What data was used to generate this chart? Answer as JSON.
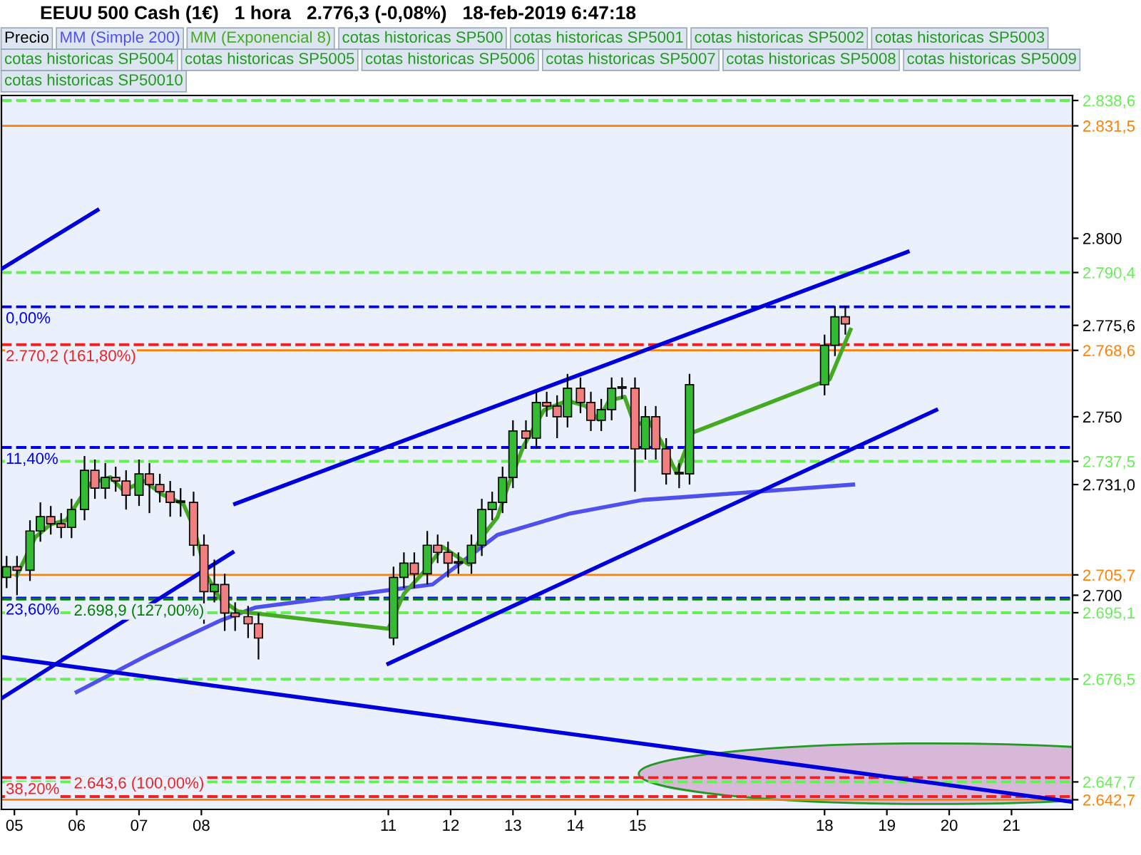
{
  "chart_data": {
    "type": "candlestick",
    "title": "EEUU 500 Cash (1€)   1 hora   2.776,3 (-0,08%)   18-feb-2019 6:47:18",
    "xlim": [
      "2019-02-04T19:00",
      "2019-02-21T23:30"
    ],
    "ylim": [
      2640,
      2840
    ],
    "xticks": [
      {
        "value": "2019-02-05",
        "label": "05"
      },
      {
        "value": "2019-02-06",
        "label": "06"
      },
      {
        "value": "2019-02-07",
        "label": "07"
      },
      {
        "value": "2019-02-08",
        "label": "08"
      },
      {
        "value": "2019-02-11",
        "label": "11"
      },
      {
        "value": "2019-02-12",
        "label": "12"
      },
      {
        "value": "2019-02-13",
        "label": "13"
      },
      {
        "value": "2019-02-14",
        "label": "14"
      },
      {
        "value": "2019-02-15",
        "label": "15"
      },
      {
        "value": "2019-02-18",
        "label": "18"
      },
      {
        "value": "2019-02-19",
        "label": "19"
      },
      {
        "value": "2019-02-20",
        "label": "20"
      },
      {
        "value": "2019-02-21",
        "label": "21"
      }
    ],
    "yticks": [
      {
        "value": 2838.6,
        "label": "2.838,6"
      },
      {
        "value": 2831.5,
        "label": "2.831,5"
      },
      {
        "value": 2800,
        "label": "2.800"
      },
      {
        "value": 2790.4,
        "label": "2.790,4"
      },
      {
        "value": 2775.6,
        "label": "2.775,6"
      },
      {
        "value": 2768.6,
        "label": "2.768,6"
      },
      {
        "value": 2750,
        "label": "2.750"
      },
      {
        "value": 2737.5,
        "label": "2.737,5"
      },
      {
        "value": 2731.0,
        "label": "2.731,0"
      },
      {
        "value": 2705.7,
        "label": "2.705,7"
      },
      {
        "value": 2700,
        "label": "2.700"
      },
      {
        "value": 2695.1,
        "label": "2.695,1"
      },
      {
        "value": 2676.5,
        "label": "2.676,5"
      },
      {
        "value": 2647.7,
        "label": "2.647,7"
      },
      {
        "value": 2642.7,
        "label": "2.642,7"
      }
    ],
    "grid": false,
    "legend": "top",
    "series": [
      {
        "name": "Precio",
        "color": "#000000",
        "x": [
          "2019-02-04T21:00",
          "2019-02-05T01:00",
          "2019-02-05T06:00",
          "2019-02-05T10:00",
          "2019-02-05T14:00",
          "2019-02-05T18:00",
          "2019-02-05T22:00",
          "2019-02-06T03:00",
          "2019-02-06T07:00",
          "2019-02-06T11:00",
          "2019-02-06T15:00",
          "2019-02-06T19:00",
          "2019-02-07T00:00",
          "2019-02-07T04:00",
          "2019-02-07T08:00",
          "2019-02-07T12:00",
          "2019-02-07T16:00",
          "2019-02-07T21:00",
          "2019-02-08T01:00",
          "2019-02-08T05:00",
          "2019-02-08T09:00",
          "2019-02-08T13:00",
          "2019-02-08T18:00",
          "2019-02-08T22:00",
          "2019-02-11T02:00",
          "2019-02-11T06:00",
          "2019-02-11T10:00",
          "2019-02-11T15:00",
          "2019-02-11T19:00",
          "2019-02-11T23:00",
          "2019-02-12T03:00",
          "2019-02-12T08:00",
          "2019-02-12T12:00",
          "2019-02-12T16:00",
          "2019-02-12T20:00",
          "2019-02-13T00:00",
          "2019-02-13T05:00",
          "2019-02-13T09:00",
          "2019-02-13T13:00",
          "2019-02-13T17:00",
          "2019-02-13T21:00",
          "2019-02-14T02:00",
          "2019-02-14T06:00",
          "2019-02-14T10:00",
          "2019-02-14T14:00",
          "2019-02-14T18:00",
          "2019-02-14T23:00",
          "2019-02-15T03:00",
          "2019-02-15T07:00",
          "2019-02-15T11:00",
          "2019-02-15T16:00",
          "2019-02-15T20:00",
          "2019-02-18T00:00",
          "2019-02-18T04:00",
          "2019-02-18T08:00"
        ],
        "ohlc": [
          [
            2705,
            2711,
            2702,
            2708
          ],
          [
            2708,
            2711,
            2700,
            2707
          ],
          [
            2707,
            2721,
            2704,
            2718
          ],
          [
            2718,
            2726,
            2715,
            2722
          ],
          [
            2722,
            2725,
            2717,
            2720
          ],
          [
            2720,
            2723,
            2716,
            2719
          ],
          [
            2719,
            2727,
            2716,
            2724
          ],
          [
            2724,
            2739,
            2721,
            2735
          ],
          [
            2735,
            2738,
            2727,
            2730
          ],
          [
            2730,
            2737,
            2727,
            2733
          ],
          [
            2733,
            2736,
            2729,
            2732
          ],
          [
            2732,
            2735,
            2724,
            2728
          ],
          [
            2728,
            2738,
            2725,
            2734
          ],
          [
            2734,
            2737,
            2723,
            2731
          ],
          [
            2731,
            2734,
            2726,
            2729
          ],
          [
            2729,
            2732,
            2722,
            2726
          ],
          [
            2726,
            2730,
            2722,
            2726
          ],
          [
            2726,
            2729,
            2711,
            2714
          ],
          [
            2714,
            2717,
            2692,
            2701
          ],
          [
            2701,
            2710,
            2698,
            2703
          ],
          [
            2703,
            2706,
            2690,
            2695
          ],
          [
            2695,
            2698,
            2690,
            2694
          ],
          [
            2694,
            2697,
            2688,
            2692
          ],
          [
            2692,
            2695,
            2682,
            2688
          ],
          [
            2688,
            2708,
            2686,
            2705
          ],
          [
            2705,
            2712,
            2702,
            2709
          ],
          [
            2709,
            2712,
            2702,
            2706
          ],
          [
            2706,
            2718,
            2703,
            2714
          ],
          [
            2714,
            2717,
            2709,
            2712
          ],
          [
            2712,
            2715,
            2705,
            2709
          ],
          [
            2709,
            2712,
            2706,
            2709
          ],
          [
            2709,
            2717,
            2706,
            2714
          ],
          [
            2714,
            2727,
            2711,
            2724
          ],
          [
            2724,
            2729,
            2721,
            2726
          ],
          [
            2726,
            2736,
            2723,
            2733
          ],
          [
            2733,
            2749,
            2730,
            2746
          ],
          [
            2746,
            2749,
            2741,
            2744
          ],
          [
            2744,
            2757,
            2741,
            2754
          ],
          [
            2754,
            2757,
            2750,
            2753
          ],
          [
            2753,
            2756,
            2744,
            2750
          ],
          [
            2750,
            2762,
            2747,
            2758
          ],
          [
            2758,
            2761,
            2751,
            2754
          ],
          [
            2754,
            2757,
            2746,
            2749
          ],
          [
            2749,
            2755,
            2746,
            2752
          ],
          [
            2752,
            2761,
            2749,
            2758
          ],
          [
            2758,
            2761,
            2755,
            2758
          ],
          [
            2758,
            2761,
            2729,
            2741
          ],
          [
            2741,
            2753,
            2738,
            2750
          ],
          [
            2750,
            2753,
            2738,
            2741
          ],
          [
            2741,
            2744,
            2731,
            2734
          ],
          [
            2734,
            2737,
            2730,
            2734
          ],
          [
            2734,
            2762,
            2731,
            2759
          ],
          [
            2759,
            2773,
            2756,
            2770
          ],
          [
            2770,
            2781,
            2767,
            2778
          ],
          [
            2778,
            2781,
            2773,
            2776
          ]
        ],
        "colors": [
          "#33bb33",
          "#f08080",
          "#33bb33",
          "#33bb33",
          "#f08080",
          "#f08080",
          "#33bb33",
          "#33bb33",
          "#f08080",
          "#33bb33",
          "#f08080",
          "#f08080",
          "#33bb33",
          "#f08080",
          "#f08080",
          "#f08080",
          "#33bb33",
          "#f08080",
          "#f08080",
          "#33bb33",
          "#f08080",
          "#f08080",
          "#f08080",
          "#f08080",
          "#33bb33",
          "#33bb33",
          "#f08080",
          "#33bb33",
          "#f08080",
          "#f08080",
          "#33bb33",
          "#33bb33",
          "#33bb33",
          "#33bb33",
          "#33bb33",
          "#33bb33",
          "#f08080",
          "#33bb33",
          "#f08080",
          "#f08080",
          "#33bb33",
          "#f08080",
          "#f08080",
          "#33bb33",
          "#33bb33",
          "#33bb33",
          "#f08080",
          "#33bb33",
          "#f08080",
          "#f08080",
          "#33bb33",
          "#33bb33",
          "#33bb33",
          "#33bb33",
          "#f08080"
        ]
      },
      {
        "type": "line",
        "name": "MM (Simple 200)",
        "color": "#5050ee",
        "x": [
          "2019-02-06T00:00",
          "2019-02-06T13:00",
          "2019-02-07T03:00",
          "2019-02-07T17:00",
          "2019-02-08T07:00",
          "2019-02-08T21:00",
          "2019-02-11T17:00",
          "2019-02-12T18:00",
          "2019-02-13T22:00",
          "2019-02-15T02:00",
          "2019-02-15T16:00",
          "2019-02-18T11:00"
        ],
        "values": [
          2672.9,
          2677.8,
          2683.1,
          2688.0,
          2692.8,
          2696.6,
          2703.0,
          2716.9,
          2722.9,
          2726.7,
          2727.4,
          2731.0
        ]
      },
      {
        "type": "line",
        "name": "MM (Exponencial 8)",
        "color": "#44aa22",
        "x": [
          "2019-02-05T01:00",
          "2019-02-05T08:00",
          "2019-02-05T14:00",
          "2019-02-05T20:00",
          "2019-02-06T00:00",
          "2019-02-06T05:00",
          "2019-02-06T13:00",
          "2019-02-06T18:00",
          "2019-02-07T02:00",
          "2019-02-07T09:00",
          "2019-02-07T17:00",
          "2019-02-07T21:00",
          "2019-02-08T02:00",
          "2019-02-08T07:00",
          "2019-02-08T14:00",
          "2019-02-11T00:00",
          "2019-02-11T06:00",
          "2019-02-11T14:00",
          "2019-02-11T21:00",
          "2019-02-12T07:00",
          "2019-02-12T11:00",
          "2019-02-12T18:00",
          "2019-02-12T22:00",
          "2019-02-13T04:00",
          "2019-02-13T12:00",
          "2019-02-13T21:00",
          "2019-02-14T04:00",
          "2019-02-14T09:00",
          "2019-02-14T13:00",
          "2019-02-14T19:00",
          "2019-02-14T23:00",
          "2019-02-15T04:00",
          "2019-02-15T09:00",
          "2019-02-15T15:00",
          "2019-02-15T21:00",
          "2019-02-18T02:00",
          "2019-02-18T10:00"
        ],
        "values": [
          2705.6,
          2716.2,
          2719.9,
          2721.0,
          2725.6,
          2731.2,
          2733.1,
          2729.3,
          2732.0,
          2728.2,
          2725.6,
          2719.2,
          2705.6,
          2699.2,
          2695.5,
          2690.6,
          2700.4,
          2706.8,
          2713.5,
          2708.6,
          2715.4,
          2721.8,
          2730.4,
          2741.7,
          2751.9,
          2754.5,
          2753.0,
          2749.2,
          2754.5,
          2755.6,
          2747.4,
          2749.2,
          2743.2,
          2734.2,
          2745.5,
          2760.5,
          2774.4
        ]
      },
      {
        "type": "line",
        "color": "#0000dd",
        "x": [
          "2019-02-04T19:00",
          "2019-02-06T08:00"
        ],
        "values": [
          2791.4,
          2807.9
        ]
      },
      {
        "type": "line",
        "color": "#0000dd",
        "x": [
          "2019-02-08T13:00",
          "2019-02-19T08:00"
        ],
        "values": [
          2725.6,
          2796.2
        ]
      },
      {
        "type": "line",
        "color": "#0000dd",
        "x": [
          "2019-02-11T00:00",
          "2019-02-19T19:00"
        ],
        "values": [
          2680.8,
          2751.9
        ]
      },
      {
        "type": "line",
        "color": "#0000dd",
        "x": [
          "2019-02-04T19:00",
          "2019-02-08T12:00"
        ],
        "values": [
          2671.1,
          2712.0
        ]
      },
      {
        "type": "line",
        "color": "#0000dd",
        "x": [
          "2019-02-04T19:00",
          "2019-02-21T23:30"
        ],
        "values": [
          2682.7,
          2642.1
        ]
      }
    ],
    "ref_lines": [
      {
        "axis": "y",
        "value": 2838.6,
        "color": "#66ee55",
        "line_style": "dashed"
      },
      {
        "axis": "y",
        "value": 2831.5,
        "color": "#ff8000",
        "line_style": "solid"
      },
      {
        "axis": "y",
        "value": 2790.4,
        "color": "#66ee55",
        "line_style": "dashed"
      },
      {
        "axis": "y",
        "value": 2780.8,
        "color": "#0000ee",
        "line_style": "dashed"
      },
      {
        "axis": "y",
        "value": 2770.2,
        "color": "#ee2222",
        "line_style": "dashed",
        "label": "2.770,2 (161,80%)"
      },
      {
        "axis": "y",
        "value": 2768.6,
        "color": "#ff8000",
        "line_style": "solid"
      },
      {
        "axis": "y",
        "value": 2741.4,
        "color": "#0000ee",
        "line_style": "dashed"
      },
      {
        "axis": "y",
        "value": 2737.5,
        "color": "#66ee55",
        "line_style": "dashed"
      },
      {
        "axis": "y",
        "value": 2705.7,
        "color": "#ff8000",
        "line_style": "solid"
      },
      {
        "axis": "y",
        "value": 2699.2,
        "color": "#0000ee",
        "line_style": "dashed"
      },
      {
        "axis": "y",
        "value": 2698.9,
        "color": "#008000",
        "line_style": "dashed",
        "label": "2.698,9 (127,00%)"
      },
      {
        "axis": "y",
        "value": 2695.1,
        "color": "#66ee55",
        "line_style": "dashed"
      },
      {
        "axis": "y",
        "value": 2676.5,
        "color": "#66ee55",
        "line_style": "dashed"
      },
      {
        "axis": "y",
        "value": 2648.9,
        "color": "#ee2222",
        "line_style": "dashed"
      },
      {
        "axis": "y",
        "value": 2647.7,
        "color": "#66ee55",
        "line_style": "dashed"
      },
      {
        "axis": "y",
        "value": 2643.6,
        "color": "#ee2222",
        "line_style": "dashed",
        "label": "2.643,6 (100,00%)"
      },
      {
        "axis": "y",
        "value": 2642.7,
        "color": "#ff8000",
        "line_style": "solid"
      }
    ],
    "annotations": [
      "cotas historicas SP500",
      "cotas historicas SP5001",
      "cotas historicas SP5002",
      "cotas historicas SP5003",
      "cotas historicas SP5004",
      "cotas historicas SP5005",
      "cotas historicas SP5006",
      "cotas historicas SP5007",
      "cotas historicas SP5008",
      "cotas historicas SP5009",
      "cotas historicas SP50010",
      {
        "text": "0,00%",
        "x": "2019-02-04T19:00",
        "y": 2780.8
      },
      {
        "text": "11,40%",
        "x": "2019-02-04T19:00",
        "y": 2741.4
      },
      {
        "text": "23,60%",
        "x": "2019-02-04T19:00",
        "y": 2699.2
      },
      {
        "text": "38,20%",
        "x": "2019-02-04T19:00",
        "y": 2648.9
      }
    ]
  }
}
